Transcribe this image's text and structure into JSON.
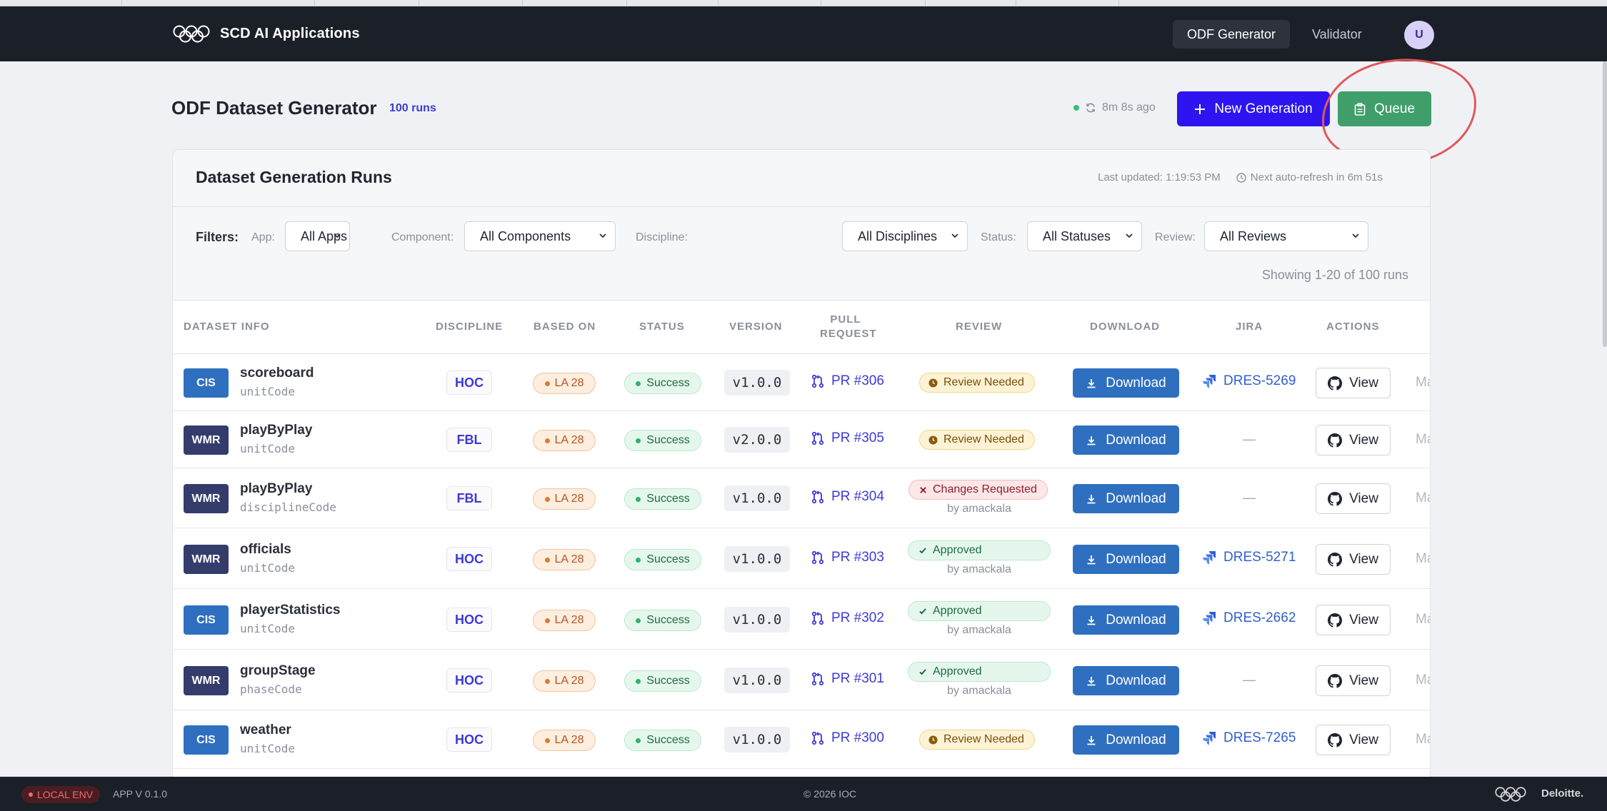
{
  "nav": {
    "brand": "SCD AI Applications",
    "tabs": [
      "ODF Generator",
      "Validator"
    ],
    "avatar_initial": "U"
  },
  "header": {
    "title": "ODF Dataset Generator",
    "runs_count": "100 runs",
    "refresh_ago": "8m 8s ago",
    "new_generation_label": "New Generation",
    "queue_label": "Queue"
  },
  "card": {
    "title": "Dataset Generation Runs",
    "last_updated": "Last updated: 1:19:53 PM",
    "next_refresh": "Next auto-refresh in 6m 51s"
  },
  "filters": {
    "label": "Filters:",
    "app_label": "App:",
    "app_value": "All Apps",
    "component_label": "Component:",
    "component_value": "All Components",
    "discipline_label": "Discipline:",
    "discipline_value": "All Disciplines",
    "status_label": "Status:",
    "status_value": "All Statuses",
    "review_label": "Review:",
    "review_value": "All Reviews",
    "showing": "Showing 1-20 of 100 runs"
  },
  "table": {
    "columns": [
      "DATASET INFO",
      "DISCIPLINE",
      "BASED ON",
      "STATUS",
      "VERSION",
      "PULL REQUEST",
      "REVIEW",
      "DOWNLOAD",
      "JIRA",
      "ACTIONS"
    ],
    "pull_request_lines": [
      "PULL",
      "REQUEST"
    ],
    "download_label": "Download",
    "view_label": "View",
    "trunc_label": "Ma",
    "rows": [
      {
        "app": "CIS",
        "name": "scoreboard",
        "code": "unitCode",
        "discipline": "HOC",
        "based_on": "LA 28",
        "status": "Success",
        "version": "v1.0.0",
        "pr": "PR #306",
        "review": "Review Needed",
        "review_by": "",
        "jira": "DRES-5269"
      },
      {
        "app": "WMR",
        "name": "playByPlay",
        "code": "unitCode",
        "discipline": "FBL",
        "based_on": "LA 28",
        "status": "Success",
        "version": "v2.0.0",
        "pr": "PR #305",
        "review": "Review Needed",
        "review_by": "",
        "jira": "—"
      },
      {
        "app": "WMR",
        "name": "playByPlay",
        "code": "disciplineCode",
        "discipline": "FBL",
        "based_on": "LA 28",
        "status": "Success",
        "version": "v1.0.0",
        "pr": "PR #304",
        "review": "Changes Requested",
        "review_by": "by amackala",
        "jira": "—"
      },
      {
        "app": "WMR",
        "name": "officials",
        "code": "unitCode",
        "discipline": "HOC",
        "based_on": "LA 28",
        "status": "Success",
        "version": "v1.0.0",
        "pr": "PR #303",
        "review": "Approved",
        "review_by": "by amackala",
        "jira": "DRES-5271"
      },
      {
        "app": "CIS",
        "name": "playerStatistics",
        "code": "unitCode",
        "discipline": "HOC",
        "based_on": "LA 28",
        "status": "Success",
        "version": "v1.0.0",
        "pr": "PR #302",
        "review": "Approved",
        "review_by": "by amackala",
        "jira": "DRES-2662"
      },
      {
        "app": "WMR",
        "name": "groupStage",
        "code": "phaseCode",
        "discipline": "HOC",
        "based_on": "LA 28",
        "status": "Success",
        "version": "v1.0.0",
        "pr": "PR #301",
        "review": "Approved",
        "review_by": "by amackala",
        "jira": "—"
      },
      {
        "app": "CIS",
        "name": "weather",
        "code": "unitCode",
        "discipline": "HOC",
        "based_on": "LA 28",
        "status": "Success",
        "version": "v1.0.0",
        "pr": "PR #300",
        "review": "Review Needed",
        "review_by": "",
        "jira": "DRES-7265"
      }
    ]
  },
  "footer": {
    "env": "LOCAL ENV",
    "app_version": "APP V 0.1.0",
    "copyright": "© 2026 IOC",
    "company": "Deloitte."
  },
  "colors": {
    "navbar": "#1b1f27",
    "primary": "#2d14f0",
    "queue": "#3f9e6a",
    "download": "#2f6fc0",
    "annotation": "#e0585a"
  }
}
